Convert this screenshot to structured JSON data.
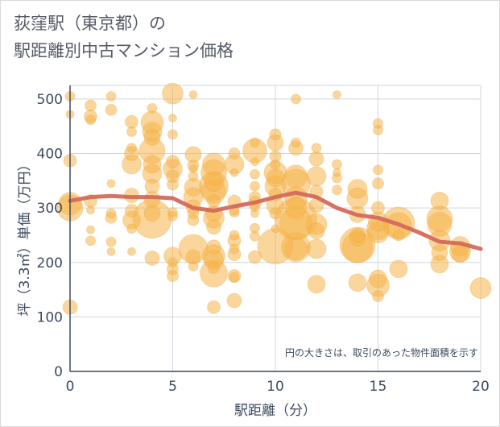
{
  "title": {
    "line1": "荻窪駅（東京都）の",
    "line2": "駅距離別中古マンション価格"
  },
  "chart_data": {
    "type": "scatter",
    "xlabel": "駅距離（分）",
    "ylabel": "坪（3.3㎡）単価（万円）",
    "xlim": [
      0,
      20
    ],
    "ylim": [
      0,
      525
    ],
    "xticks": [
      0,
      5,
      10,
      15,
      20
    ],
    "yticks": [
      0,
      100,
      200,
      300,
      400,
      500
    ],
    "grid": true,
    "note": "円の大きさは、取引のあった物件面積を示す",
    "colors": {
      "bubble": "#f5b54a",
      "line": "#d46a5a",
      "grid": "#d0d5dd",
      "axis": "#3c4a5e"
    },
    "series": [
      {
        "type": "bubble",
        "points": [
          {
            "x": 0,
            "y": 505,
            "s": 6
          },
          {
            "x": 0,
            "y": 472,
            "s": 5
          },
          {
            "x": 0,
            "y": 387,
            "s": 8
          },
          {
            "x": 0,
            "y": 308,
            "s": 14
          },
          {
            "x": 0,
            "y": 300,
            "s": 16
          },
          {
            "x": 0,
            "y": 118,
            "s": 9
          },
          {
            "x": 1,
            "y": 488,
            "s": 7
          },
          {
            "x": 1,
            "y": 468,
            "s": 8
          },
          {
            "x": 1,
            "y": 462,
            "s": 6
          },
          {
            "x": 1,
            "y": 313,
            "s": 8
          },
          {
            "x": 1,
            "y": 296,
            "s": 5
          },
          {
            "x": 1,
            "y": 260,
            "s": 5
          },
          {
            "x": 1,
            "y": 240,
            "s": 6
          },
          {
            "x": 2,
            "y": 505,
            "s": 6
          },
          {
            "x": 2,
            "y": 480,
            "s": 7
          },
          {
            "x": 2,
            "y": 345,
            "s": 5
          },
          {
            "x": 2,
            "y": 290,
            "s": 6
          },
          {
            "x": 2,
            "y": 282,
            "s": 7
          },
          {
            "x": 2,
            "y": 238,
            "s": 6
          },
          {
            "x": 2,
            "y": 220,
            "s": 5
          },
          {
            "x": 3,
            "y": 458,
            "s": 8
          },
          {
            "x": 3,
            "y": 440,
            "s": 6
          },
          {
            "x": 3,
            "y": 410,
            "s": 6
          },
          {
            "x": 3,
            "y": 400,
            "s": 9
          },
          {
            "x": 3,
            "y": 380,
            "s": 12
          },
          {
            "x": 3,
            "y": 323,
            "s": 9
          },
          {
            "x": 3,
            "y": 295,
            "s": 8
          },
          {
            "x": 3,
            "y": 278,
            "s": 11
          },
          {
            "x": 3,
            "y": 262,
            "s": 6
          },
          {
            "x": 3,
            "y": 220,
            "s": 5
          },
          {
            "x": 4,
            "y": 483,
            "s": 6
          },
          {
            "x": 4,
            "y": 457,
            "s": 14
          },
          {
            "x": 4,
            "y": 440,
            "s": 12
          },
          {
            "x": 4,
            "y": 430,
            "s": 10
          },
          {
            "x": 4,
            "y": 405,
            "s": 16
          },
          {
            "x": 4,
            "y": 380,
            "s": 11
          },
          {
            "x": 4,
            "y": 363,
            "s": 12
          },
          {
            "x": 4,
            "y": 340,
            "s": 9
          },
          {
            "x": 4,
            "y": 316,
            "s": 10
          },
          {
            "x": 4,
            "y": 290,
            "s": 10
          },
          {
            "x": 4,
            "y": 280,
            "s": 24
          },
          {
            "x": 4,
            "y": 208,
            "s": 9
          },
          {
            "x": 5,
            "y": 510,
            "s": 13
          },
          {
            "x": 5,
            "y": 465,
            "s": 5
          },
          {
            "x": 5,
            "y": 435,
            "s": 6
          },
          {
            "x": 5,
            "y": 385,
            "s": 8
          },
          {
            "x": 5,
            "y": 372,
            "s": 12
          },
          {
            "x": 5,
            "y": 358,
            "s": 8
          },
          {
            "x": 5,
            "y": 343,
            "s": 7
          },
          {
            "x": 5,
            "y": 292,
            "s": 6
          },
          {
            "x": 5,
            "y": 285,
            "s": 6
          },
          {
            "x": 5,
            "y": 212,
            "s": 11
          },
          {
            "x": 5,
            "y": 200,
            "s": 6
          },
          {
            "x": 5,
            "y": 188,
            "s": 7
          },
          {
            "x": 5,
            "y": 175,
            "s": 7
          },
          {
            "x": 6,
            "y": 508,
            "s": 5
          },
          {
            "x": 6,
            "y": 398,
            "s": 10
          },
          {
            "x": 6,
            "y": 378,
            "s": 7
          },
          {
            "x": 6,
            "y": 372,
            "s": 5
          },
          {
            "x": 6,
            "y": 358,
            "s": 6
          },
          {
            "x": 6,
            "y": 338,
            "s": 11
          },
          {
            "x": 6,
            "y": 320,
            "s": 12
          },
          {
            "x": 6,
            "y": 302,
            "s": 9
          },
          {
            "x": 6,
            "y": 290,
            "s": 7
          },
          {
            "x": 6,
            "y": 278,
            "s": 7
          },
          {
            "x": 6,
            "y": 225,
            "s": 18
          },
          {
            "x": 6,
            "y": 210,
            "s": 9
          },
          {
            "x": 6,
            "y": 193,
            "s": 6
          },
          {
            "x": 7,
            "y": 380,
            "s": 14
          },
          {
            "x": 7,
            "y": 365,
            "s": 16
          },
          {
            "x": 7,
            "y": 348,
            "s": 12
          },
          {
            "x": 7,
            "y": 340,
            "s": 18
          },
          {
            "x": 7,
            "y": 330,
            "s": 15
          },
          {
            "x": 7,
            "y": 313,
            "s": 8
          },
          {
            "x": 7,
            "y": 290,
            "s": 10
          },
          {
            "x": 7,
            "y": 282,
            "s": 13
          },
          {
            "x": 7,
            "y": 265,
            "s": 9
          },
          {
            "x": 7,
            "y": 228,
            "s": 9
          },
          {
            "x": 7,
            "y": 212,
            "s": 14
          },
          {
            "x": 7,
            "y": 205,
            "s": 12
          },
          {
            "x": 7,
            "y": 190,
            "s": 7
          },
          {
            "x": 7,
            "y": 180,
            "s": 17
          },
          {
            "x": 7,
            "y": 118,
            "s": 8
          },
          {
            "x": 8,
            "y": 400,
            "s": 7
          },
          {
            "x": 8,
            "y": 380,
            "s": 12
          },
          {
            "x": 8,
            "y": 365,
            "s": 5
          },
          {
            "x": 8,
            "y": 312,
            "s": 8
          },
          {
            "x": 8,
            "y": 295,
            "s": 6
          },
          {
            "x": 8,
            "y": 292,
            "s": 6
          },
          {
            "x": 8,
            "y": 250,
            "s": 6
          },
          {
            "x": 8,
            "y": 240,
            "s": 8
          },
          {
            "x": 8,
            "y": 225,
            "s": 6
          },
          {
            "x": 8,
            "y": 215,
            "s": 8
          },
          {
            "x": 8,
            "y": 175,
            "s": 8
          },
          {
            "x": 8,
            "y": 173,
            "s": 6
          },
          {
            "x": 8,
            "y": 130,
            "s": 9
          },
          {
            "x": 9,
            "y": 420,
            "s": 6
          },
          {
            "x": 9,
            "y": 405,
            "s": 15
          },
          {
            "x": 9,
            "y": 385,
            "s": 5
          },
          {
            "x": 9,
            "y": 362,
            "s": 6
          },
          {
            "x": 9,
            "y": 340,
            "s": 6
          },
          {
            "x": 9,
            "y": 320,
            "s": 7
          },
          {
            "x": 9,
            "y": 310,
            "s": 8
          },
          {
            "x": 9,
            "y": 302,
            "s": 6
          },
          {
            "x": 9,
            "y": 290,
            "s": 5
          },
          {
            "x": 9,
            "y": 263,
            "s": 6
          },
          {
            "x": 9,
            "y": 248,
            "s": 6
          },
          {
            "x": 9,
            "y": 210,
            "s": 8
          },
          {
            "x": 10,
            "y": 435,
            "s": 7
          },
          {
            "x": 10,
            "y": 420,
            "s": 10
          },
          {
            "x": 10,
            "y": 395,
            "s": 7
          },
          {
            "x": 10,
            "y": 380,
            "s": 6
          },
          {
            "x": 10,
            "y": 365,
            "s": 14
          },
          {
            "x": 10,
            "y": 355,
            "s": 11
          },
          {
            "x": 10,
            "y": 340,
            "s": 13
          },
          {
            "x": 10,
            "y": 325,
            "s": 8
          },
          {
            "x": 10,
            "y": 305,
            "s": 11
          },
          {
            "x": 10,
            "y": 290,
            "s": 7
          },
          {
            "x": 10,
            "y": 262,
            "s": 5
          },
          {
            "x": 10,
            "y": 230,
            "s": 22
          },
          {
            "x": 11,
            "y": 500,
            "s": 6
          },
          {
            "x": 11,
            "y": 420,
            "s": 6
          },
          {
            "x": 11,
            "y": 410,
            "s": 9
          },
          {
            "x": 11,
            "y": 358,
            "s": 14
          },
          {
            "x": 11,
            "y": 345,
            "s": 18
          },
          {
            "x": 11,
            "y": 318,
            "s": 14
          },
          {
            "x": 11,
            "y": 300,
            "s": 13
          },
          {
            "x": 11,
            "y": 280,
            "s": 26
          },
          {
            "x": 11,
            "y": 272,
            "s": 20
          },
          {
            "x": 11,
            "y": 228,
            "s": 18
          },
          {
            "x": 11,
            "y": 225,
            "s": 14
          },
          {
            "x": 12,
            "y": 410,
            "s": 6
          },
          {
            "x": 12,
            "y": 390,
            "s": 9
          },
          {
            "x": 12,
            "y": 358,
            "s": 12
          },
          {
            "x": 12,
            "y": 330,
            "s": 8
          },
          {
            "x": 12,
            "y": 305,
            "s": 9
          },
          {
            "x": 12,
            "y": 270,
            "s": 13
          },
          {
            "x": 12,
            "y": 258,
            "s": 10
          },
          {
            "x": 12,
            "y": 225,
            "s": 12
          },
          {
            "x": 12,
            "y": 160,
            "s": 11
          },
          {
            "x": 13,
            "y": 508,
            "s": 5
          },
          {
            "x": 13,
            "y": 380,
            "s": 6
          },
          {
            "x": 13,
            "y": 365,
            "s": 5
          },
          {
            "x": 13,
            "y": 355,
            "s": 6
          },
          {
            "x": 13,
            "y": 333,
            "s": 6
          },
          {
            "x": 14,
            "y": 335,
            "s": 12
          },
          {
            "x": 14,
            "y": 318,
            "s": 13
          },
          {
            "x": 14,
            "y": 288,
            "s": 10
          },
          {
            "x": 14,
            "y": 250,
            "s": 9
          },
          {
            "x": 14,
            "y": 245,
            "s": 10
          },
          {
            "x": 14,
            "y": 232,
            "s": 22
          },
          {
            "x": 14,
            "y": 228,
            "s": 19
          },
          {
            "x": 14,
            "y": 163,
            "s": 11
          },
          {
            "x": 15,
            "y": 455,
            "s": 6
          },
          {
            "x": 15,
            "y": 443,
            "s": 6
          },
          {
            "x": 15,
            "y": 370,
            "s": 6
          },
          {
            "x": 15,
            "y": 345,
            "s": 7
          },
          {
            "x": 15,
            "y": 300,
            "s": 8
          },
          {
            "x": 15,
            "y": 275,
            "s": 12
          },
          {
            "x": 15,
            "y": 262,
            "s": 14
          },
          {
            "x": 15,
            "y": 255,
            "s": 13
          },
          {
            "x": 15,
            "y": 170,
            "s": 11
          },
          {
            "x": 15,
            "y": 158,
            "s": 14
          },
          {
            "x": 15,
            "y": 138,
            "s": 7
          },
          {
            "x": 16,
            "y": 272,
            "s": 20
          },
          {
            "x": 16,
            "y": 268,
            "s": 16
          },
          {
            "x": 16,
            "y": 250,
            "s": 7
          },
          {
            "x": 16,
            "y": 188,
            "s": 11
          },
          {
            "x": 18,
            "y": 313,
            "s": 11
          },
          {
            "x": 18,
            "y": 280,
            "s": 16
          },
          {
            "x": 18,
            "y": 270,
            "s": 15
          },
          {
            "x": 18,
            "y": 240,
            "s": 13
          },
          {
            "x": 18,
            "y": 218,
            "s": 10
          },
          {
            "x": 18,
            "y": 197,
            "s": 11
          },
          {
            "x": 19,
            "y": 230,
            "s": 12
          },
          {
            "x": 19,
            "y": 220,
            "s": 13
          },
          {
            "x": 19,
            "y": 215,
            "s": 10
          },
          {
            "x": 20,
            "y": 153,
            "s": 13
          }
        ]
      },
      {
        "type": "line",
        "x": [
          0,
          1,
          2,
          3,
          4,
          5,
          6,
          7,
          8,
          9,
          10,
          11,
          12,
          13,
          14,
          15,
          16,
          17,
          18,
          19,
          20
        ],
        "y": [
          313,
          320,
          322,
          320,
          320,
          318,
          300,
          295,
          303,
          310,
          320,
          328,
          320,
          300,
          287,
          282,
          270,
          255,
          238,
          235,
          225
        ]
      }
    ]
  }
}
